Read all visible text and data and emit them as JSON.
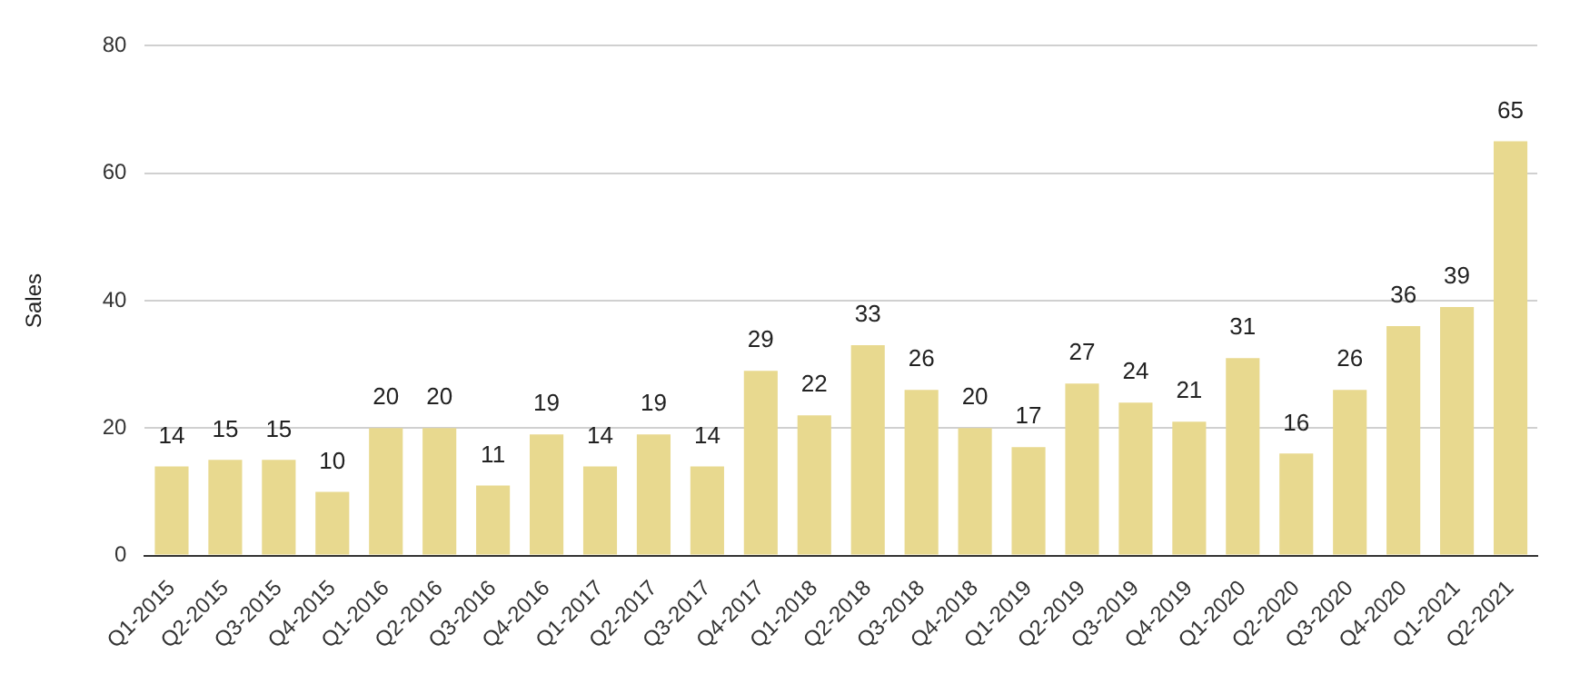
{
  "chart_data": {
    "type": "bar",
    "ylabel": "Sales",
    "categories": [
      "Q1-2015",
      "Q2-2015",
      "Q3-2015",
      "Q4-2015",
      "Q1-2016",
      "Q2-2016",
      "Q3-2016",
      "Q4-2016",
      "Q1-2017",
      "Q2-2017",
      "Q3-2017",
      "Q4-2017",
      "Q1-2018",
      "Q2-2018",
      "Q3-2018",
      "Q4-2018",
      "Q1-2019",
      "Q2-2019",
      "Q3-2019",
      "Q4-2019",
      "Q1-2020",
      "Q2-2020",
      "Q3-2020",
      "Q4-2020",
      "Q1-2021",
      "Q2-2021"
    ],
    "values": [
      14,
      15,
      15,
      10,
      20,
      20,
      11,
      19,
      14,
      19,
      14,
      29,
      22,
      33,
      26,
      20,
      17,
      27,
      24,
      21,
      31,
      16,
      26,
      36,
      39,
      65
    ],
    "color": "#e8d98f",
    "ylim": [
      0,
      80
    ],
    "yticks": [
      0,
      20,
      40,
      60,
      80
    ],
    "grid": "y",
    "data_labels": true,
    "legend": false
  }
}
